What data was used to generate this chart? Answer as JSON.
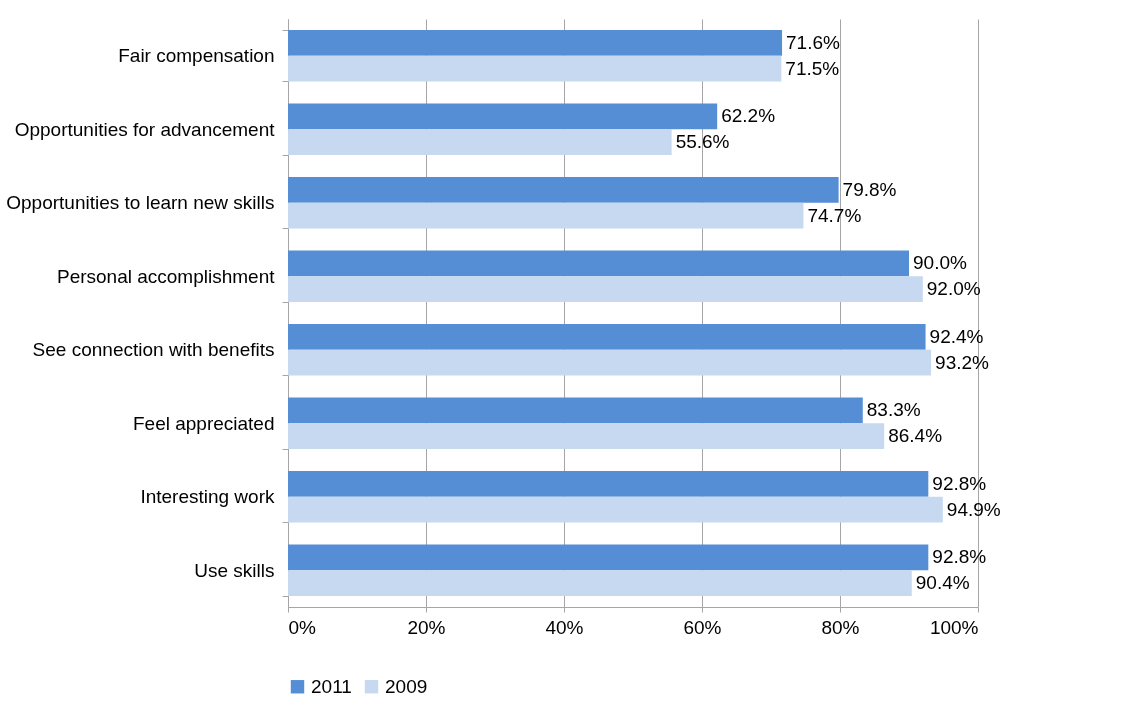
{
  "chart_data": {
    "type": "bar",
    "orientation": "horizontal",
    "categories": [
      "Fair compensation",
      "Opportunities for advancement",
      "Opportunities to learn new skills",
      "Personal accomplishment",
      "See connection with benefits",
      "Feel appreciated",
      "Interesting work",
      "Use skills"
    ],
    "series": [
      {
        "name": "2011",
        "color": "#558ed5",
        "values": [
          71.6,
          62.2,
          79.8,
          90.0,
          92.4,
          83.3,
          92.8,
          92.8
        ],
        "value_labels": [
          "71.6%",
          "62.2%",
          "79.8%",
          "90.0%",
          "92.4%",
          "83.3%",
          "92.8%",
          "92.8%"
        ]
      },
      {
        "name": "2009",
        "color": "#c6d9f1",
        "values": [
          71.5,
          55.6,
          74.7,
          92.0,
          93.2,
          86.4,
          94.9,
          90.4
        ],
        "value_labels": [
          "71.5%",
          "55.6%",
          "74.7%",
          "92.0%",
          "93.2%",
          "86.4%",
          "94.9%",
          "90.4%"
        ]
      }
    ],
    "xlim": [
      0,
      100
    ],
    "xticks": [
      {
        "value": 0,
        "label": "0%"
      },
      {
        "value": 20,
        "label": "20%"
      },
      {
        "value": 40,
        "label": "40%"
      },
      {
        "value": 60,
        "label": "60%"
      },
      {
        "value": 80,
        "label": "80%"
      },
      {
        "value": 100,
        "label": "100%"
      }
    ],
    "grid": "x",
    "legend": "bottom"
  }
}
